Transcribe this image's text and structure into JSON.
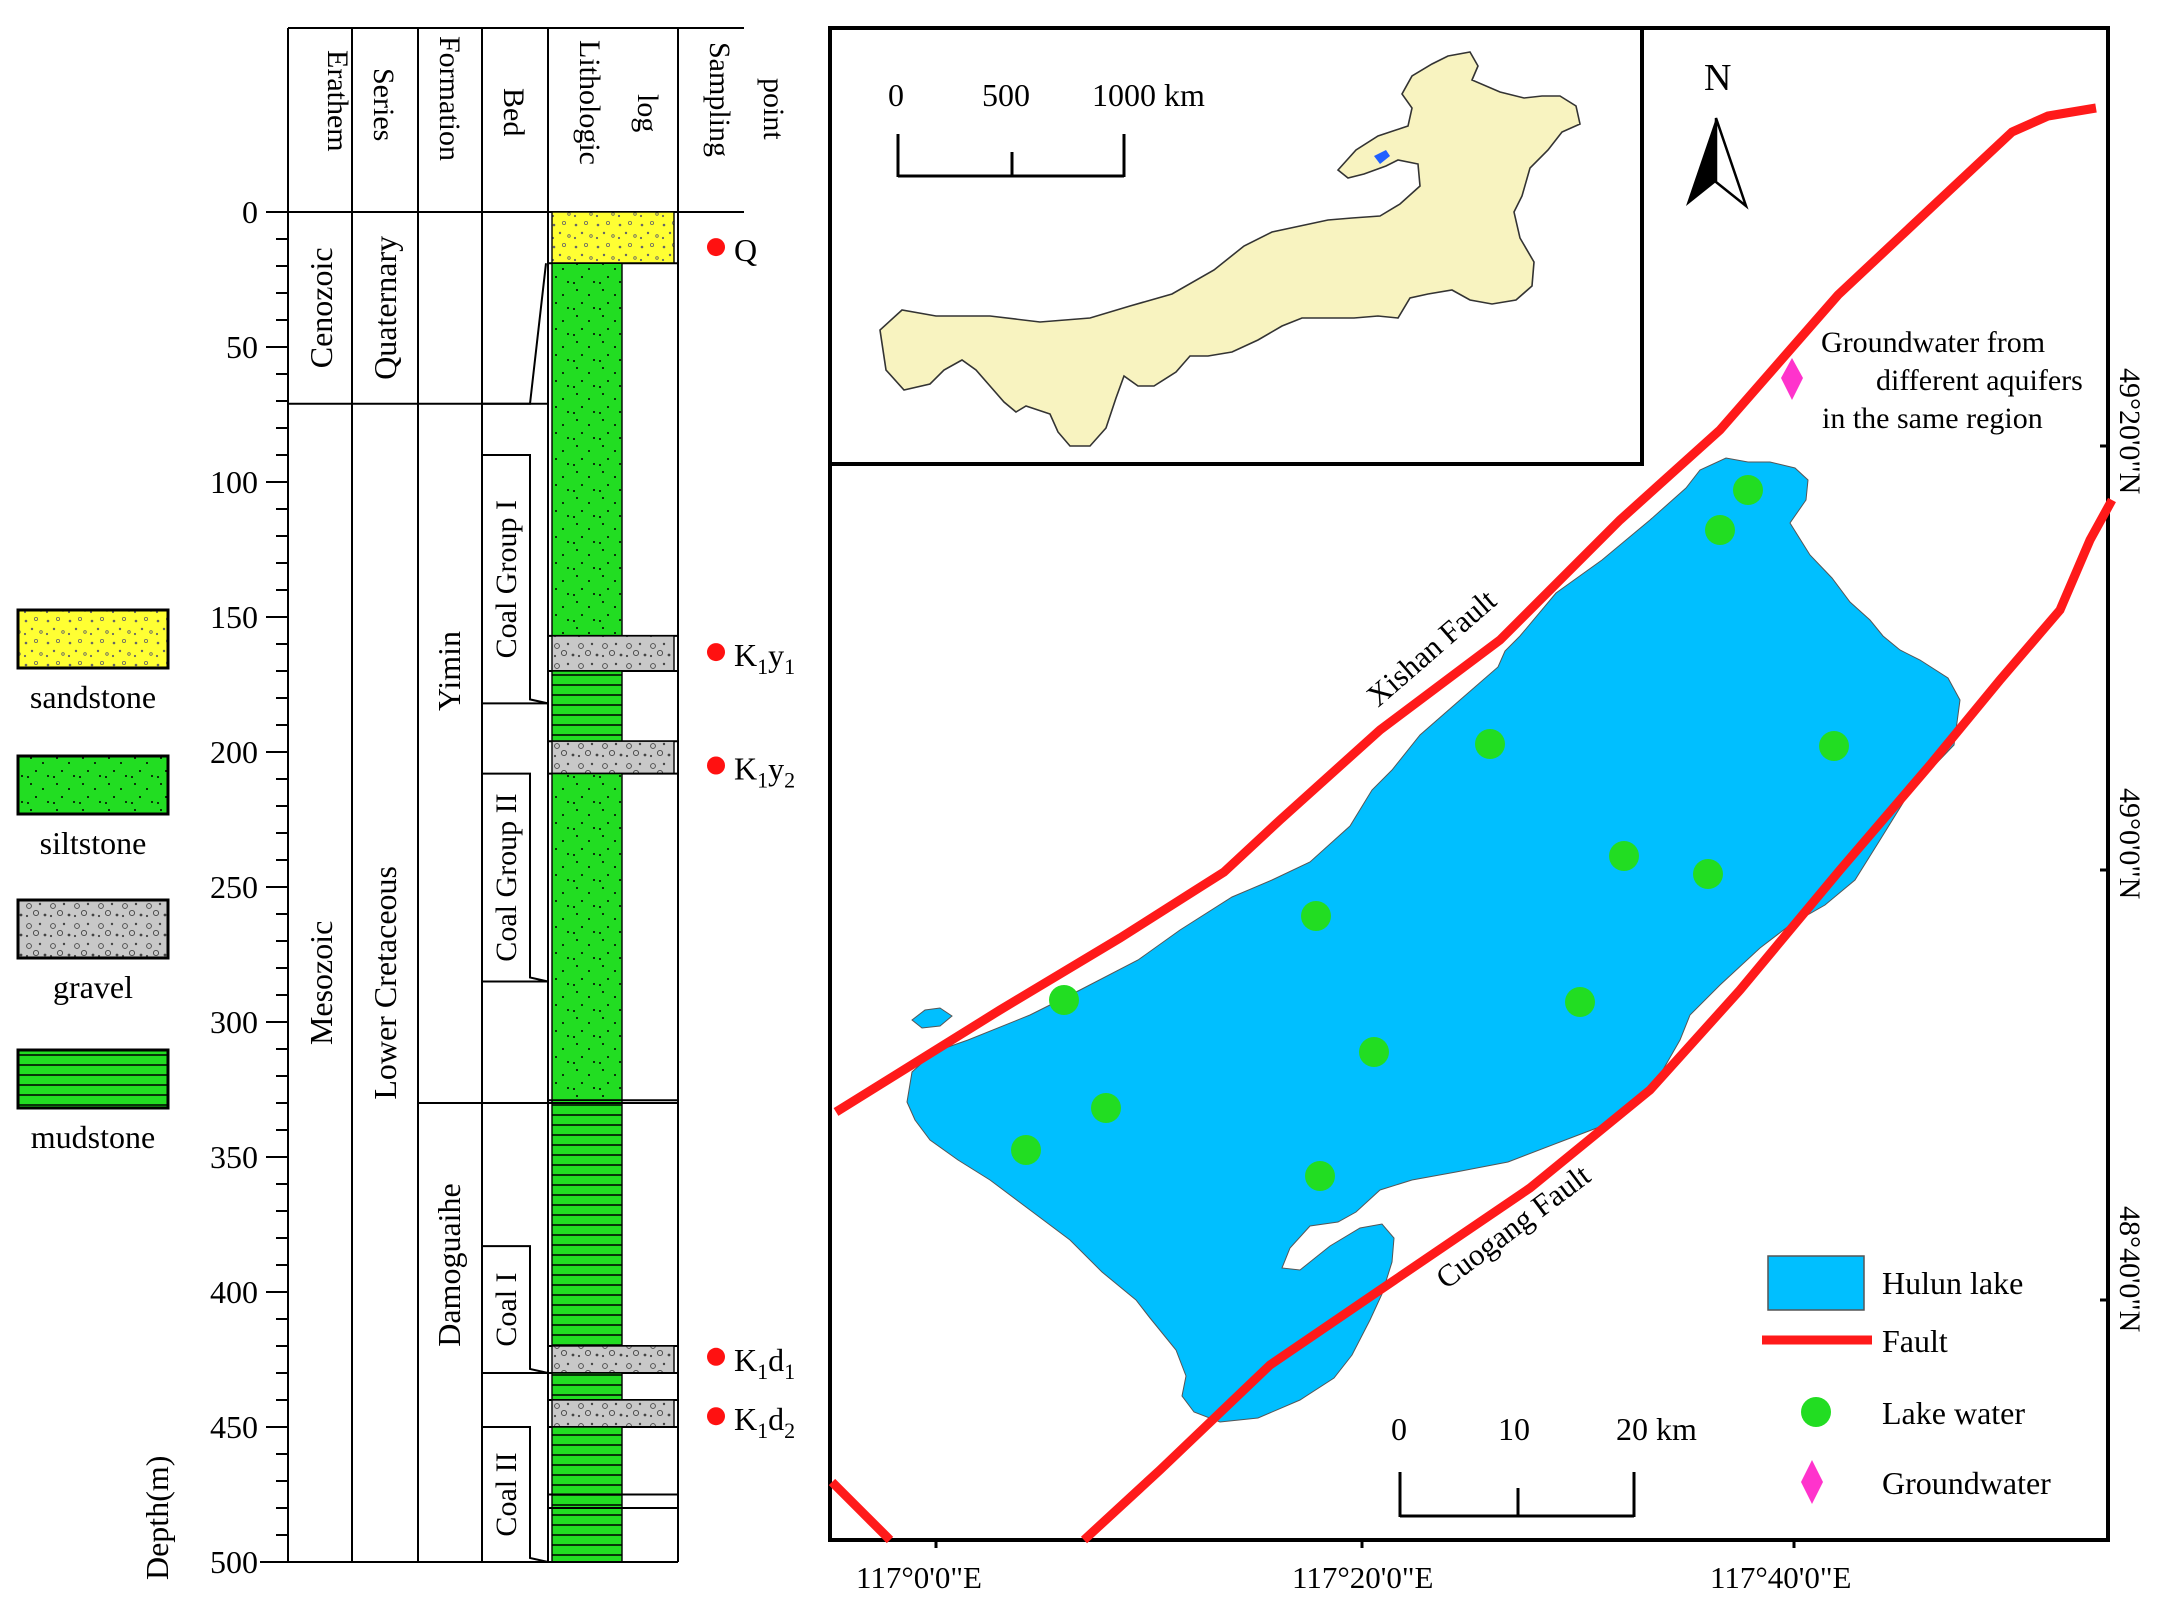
{
  "column": {
    "headers": [
      "Erathem",
      "Series",
      "Formation",
      "Bed",
      "Lithologic log",
      "Sampling point"
    ],
    "header_lines": {
      "erathem": "Erathem",
      "series": "Series",
      "formation": "Formation",
      "bed": "Bed",
      "lithologic_1": "Lithologic",
      "lithologic_2": "log",
      "sampling_1": "Sampling",
      "sampling_2": "point"
    },
    "depth_axis_label": "Depth(m)",
    "depth_ticks": [
      0,
      50,
      100,
      150,
      200,
      250,
      300,
      350,
      400,
      450,
      500
    ],
    "depth_range_m": [
      0,
      500
    ],
    "erathems": [
      {
        "name": "Cenozoic",
        "top_m": 0,
        "base_m": 71
      },
      {
        "name": "Mesozoic",
        "top_m": 71,
        "base_m": 500
      }
    ],
    "series": [
      {
        "name": "Quaternary",
        "top_m": 0,
        "base_m": 71
      },
      {
        "name": "Lower Cretaceous",
        "top_m": 71,
        "base_m": 500
      }
    ],
    "formations": [
      {
        "name": "Yimin",
        "top_m": 71,
        "base_m": 330
      },
      {
        "name": "Damoguaihe",
        "top_m": 330,
        "base_m": 500
      }
    ],
    "beds": [
      {
        "name": "Coal Group I",
        "top_m": 90,
        "base_m": 182
      },
      {
        "name": "Coal Group II",
        "top_m": 208,
        "base_m": 285
      },
      {
        "name": "Coal I",
        "top_m": 383,
        "base_m": 430
      },
      {
        "name": "Coal II",
        "top_m": 450,
        "base_m": 500
      }
    ],
    "layers": [
      {
        "lith": "sandstone",
        "top_m": 0,
        "base_m": 19
      },
      {
        "lith": "siltstone",
        "top_m": 19,
        "base_m": 157
      },
      {
        "lith": "gravel",
        "top_m": 157,
        "base_m": 170
      },
      {
        "lith": "mudstone",
        "top_m": 170,
        "base_m": 196
      },
      {
        "lith": "gravel",
        "top_m": 196,
        "base_m": 208
      },
      {
        "lith": "siltstone",
        "top_m": 208,
        "base_m": 329
      },
      {
        "lith": "mudstone",
        "top_m": 329,
        "base_m": 420
      },
      {
        "lith": "gravel",
        "top_m": 420,
        "base_m": 430
      },
      {
        "lith": "mudstone",
        "top_m": 430,
        "base_m": 440
      },
      {
        "lith": "gravel",
        "top_m": 440,
        "base_m": 450
      },
      {
        "lith": "mudstone",
        "top_m": 450,
        "base_m": 500
      }
    ],
    "sampling_points": [
      {
        "label_main": "Q",
        "label_sub": "",
        "depth_m": 13
      },
      {
        "label_main": "K",
        "label_sub": "1",
        "label_mid": "y",
        "label_sub2": "1",
        "depth_m": 163
      },
      {
        "label_main": "K",
        "label_sub": "1",
        "label_mid": "y",
        "label_sub2": "2",
        "depth_m": 205
      },
      {
        "label_main": "K",
        "label_sub": "1",
        "label_mid": "d",
        "label_sub2": "1",
        "depth_m": 424
      },
      {
        "label_main": "K",
        "label_sub": "1",
        "label_mid": "d",
        "label_sub2": "2",
        "depth_m": 446
      }
    ]
  },
  "lithology_legend": [
    {
      "name": "sandstone",
      "color": "#ffff33"
    },
    {
      "name": "siltstone",
      "color": "#22dd22"
    },
    {
      "name": "gravel",
      "color": "#c8c8c8"
    },
    {
      "name": "mudstone",
      "color": "#22dd22"
    }
  ],
  "map": {
    "inset_scale": {
      "ticks": [
        "0",
        "500",
        "1000 km"
      ]
    },
    "main_scale": {
      "ticks": [
        "0",
        "10",
        "20 km"
      ]
    },
    "north_label": "N",
    "longitude_labels": [
      "117°0'0\"E",
      "117°20'0\"E",
      "117°40'0\"E"
    ],
    "latitude_labels": [
      "49°20'0\"N",
      "49°0'0\"N",
      "48°40'0\"N"
    ],
    "faults": [
      "Xishan Fault",
      "Cuogang Fault"
    ],
    "groundwater_note": [
      "Groundwater from",
      "different aquifers",
      "in the same region"
    ],
    "legend": [
      {
        "name": "Hulun lake",
        "symbol": "lake",
        "color": "#00bfff"
      },
      {
        "name": "Fault",
        "symbol": "line",
        "color": "#ff1a1a"
      },
      {
        "name": "Lake water",
        "symbol": "dot",
        "color": "#22dd22"
      },
      {
        "name": "Groundwater",
        "symbol": "diamond",
        "color": "#ff33cc"
      }
    ],
    "lake_water_samples": 14,
    "colors": {
      "lake": "#00bfff",
      "fault": "#ff1a1a",
      "lake_water": "#22dd22",
      "groundwater": "#ff33cc",
      "inset_region": "#f8f3c0"
    }
  }
}
